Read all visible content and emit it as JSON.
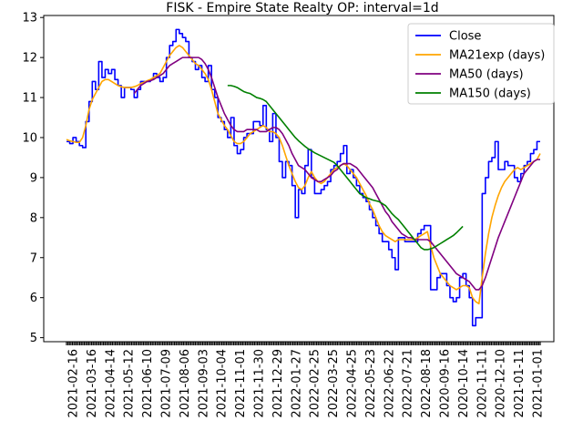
{
  "chart_data": {
    "type": "line",
    "title": "FISK - Empire State Realty OP: interval=1d",
    "xlabel": "",
    "ylabel": "",
    "ylim": [
      4.9,
      13.05
    ],
    "yticks": [
      5,
      6,
      7,
      8,
      9,
      10,
      11,
      12,
      13
    ],
    "grid": false,
    "legend_position": "top-right",
    "xtick_labels": [
      "2021-02-16",
      "2021-03-16",
      "2021-04-14",
      "2021-05-12",
      "2021-06-10",
      "2021-07-09",
      "2021-08-06",
      "2021-09-03",
      "2021-10-04",
      "2021-11-01",
      "2021-11-30",
      "2021-12-29",
      "2022-01-27",
      "2022-02-25",
      "2022-03-25",
      "2022-04-25",
      "2022-05-23",
      "2022-06-22",
      "2022-07-21",
      "2022-08-18",
      "2020-09-16",
      "2020-10-14",
      "2020-11-11",
      "2020-12-10",
      "2021-01-11",
      "2021-01-01"
    ],
    "series": [
      {
        "name": "Close",
        "color": "#0000ff",
        "values": [
          9.9,
          9.85,
          10.0,
          9.9,
          9.8,
          9.75,
          10.4,
          10.9,
          11.4,
          11.2,
          11.9,
          11.5,
          11.7,
          11.6,
          11.7,
          11.45,
          11.3,
          11.0,
          11.25,
          11.25,
          11.2,
          11.0,
          11.2,
          11.4,
          11.4,
          11.4,
          11.45,
          11.6,
          11.5,
          11.4,
          11.5,
          12.0,
          12.3,
          12.4,
          12.7,
          12.6,
          12.5,
          12.4,
          12.0,
          11.9,
          11.7,
          11.8,
          11.5,
          11.4,
          11.8,
          11.2,
          11.0,
          10.5,
          10.4,
          10.2,
          10.0,
          10.5,
          9.8,
          9.6,
          9.7,
          10.0,
          10.1,
          10.1,
          10.4,
          10.4,
          10.3,
          10.8,
          10.2,
          9.9,
          10.6,
          10.0,
          9.4,
          9.0,
          9.4,
          9.3,
          8.8,
          8.0,
          8.7,
          8.6,
          9.3,
          9.7,
          9.0,
          8.6,
          8.6,
          8.7,
          8.8,
          8.9,
          9.2,
          9.3,
          9.4,
          9.6,
          9.8,
          9.1,
          9.2,
          9.0,
          8.8,
          8.6,
          8.5,
          8.4,
          8.2,
          8.0,
          7.8,
          7.6,
          7.4,
          7.4,
          7.2,
          7.0,
          6.7,
          7.5,
          7.5,
          7.4,
          7.4,
          7.4,
          7.4,
          7.6,
          7.7,
          7.8,
          7.8,
          6.2,
          6.2,
          6.5,
          6.6,
          6.6,
          6.3,
          6.0,
          5.9,
          6.0,
          6.5,
          6.6,
          6.3,
          6.0,
          5.3,
          5.5,
          5.5,
          8.6,
          9.0,
          9.4,
          9.5,
          9.9,
          9.2,
          9.2,
          9.4,
          9.3,
          9.3,
          9.0,
          8.9,
          9.1,
          9.3,
          9.4,
          9.6,
          9.7,
          9.9,
          9.9
        ],
        "data_labels": []
      },
      {
        "name": "MA21exp (days)",
        "color": "#ffa500",
        "values": [
          9.95,
          9.92,
          9.9,
          9.88,
          9.88,
          10.0,
          10.3,
          10.7,
          10.95,
          11.1,
          11.25,
          11.4,
          11.45,
          11.45,
          11.4,
          11.35,
          11.3,
          11.27,
          11.25,
          11.25,
          11.25,
          11.27,
          11.3,
          11.35,
          11.38,
          11.42,
          11.45,
          11.5,
          11.55,
          11.6,
          11.75,
          11.9,
          12.05,
          12.15,
          12.25,
          12.3,
          12.25,
          12.15,
          12.05,
          11.95,
          11.85,
          11.8,
          11.7,
          11.6,
          11.45,
          11.2,
          10.9,
          10.6,
          10.45,
          10.3,
          10.2,
          10.05,
          9.9,
          9.85,
          9.85,
          9.9,
          10.0,
          10.1,
          10.15,
          10.2,
          10.25,
          10.3,
          10.25,
          10.15,
          10.15,
          10.1,
          10.0,
          9.8,
          9.55,
          9.3,
          9.1,
          8.9,
          8.75,
          8.7,
          8.8,
          9.0,
          9.15,
          9.0,
          8.9,
          8.85,
          8.9,
          9.0,
          9.1,
          9.2,
          9.25,
          9.3,
          9.35,
          9.3,
          9.2,
          9.1,
          9.0,
          8.85,
          8.7,
          8.55,
          8.35,
          8.2,
          8.0,
          7.8,
          7.65,
          7.55,
          7.5,
          7.45,
          7.4,
          7.45,
          7.45,
          7.45,
          7.45,
          7.45,
          7.45,
          7.5,
          7.55,
          7.6,
          7.65,
          7.3,
          7.0,
          6.8,
          6.6,
          6.5,
          6.4,
          6.3,
          6.25,
          6.2,
          6.25,
          6.3,
          6.3,
          6.25,
          6.0,
          5.9,
          5.85,
          6.5,
          7.1,
          7.6,
          8.0,
          8.3,
          8.55,
          8.75,
          8.9,
          9.0,
          9.1,
          9.2,
          9.25,
          9.2,
          9.25,
          9.3,
          9.35,
          9.4,
          9.45,
          9.6
        ],
        "data_labels": []
      },
      {
        "name": "MA50 (days)",
        "color": "#800080",
        "values": [
          null,
          null,
          null,
          null,
          null,
          null,
          null,
          null,
          null,
          null,
          null,
          null,
          null,
          null,
          null,
          null,
          null,
          null,
          null,
          null,
          null,
          11.1,
          11.2,
          11.3,
          11.35,
          11.4,
          11.42,
          11.45,
          11.5,
          11.55,
          11.6,
          11.7,
          11.8,
          11.85,
          11.9,
          11.95,
          12.0,
          12.0,
          12.0,
          12.0,
          12.0,
          12.0,
          11.95,
          11.85,
          11.7,
          11.5,
          11.25,
          11.0,
          10.8,
          10.6,
          10.45,
          10.3,
          10.2,
          10.15,
          10.15,
          10.15,
          10.2,
          10.2,
          10.2,
          10.2,
          10.15,
          10.15,
          10.15,
          10.2,
          10.25,
          10.25,
          10.2,
          10.1,
          9.95,
          9.8,
          9.6,
          9.45,
          9.3,
          9.25,
          9.2,
          9.1,
          9.0,
          8.95,
          8.9,
          8.9,
          8.95,
          9.0,
          9.05,
          9.15,
          9.2,
          9.3,
          9.35,
          9.35,
          9.35,
          9.3,
          9.25,
          9.15,
          9.05,
          8.95,
          8.85,
          8.75,
          8.6,
          8.45,
          8.3,
          8.15,
          8.05,
          7.9,
          7.8,
          7.7,
          7.6,
          7.55,
          7.5,
          7.5,
          7.45,
          7.45,
          7.45,
          7.45,
          7.45,
          7.4,
          7.3,
          7.2,
          7.1,
          7.0,
          6.9,
          6.8,
          6.7,
          6.6,
          6.55,
          6.5,
          6.45,
          6.4,
          6.3,
          6.2,
          6.2,
          6.3,
          6.5,
          6.75,
          7.0,
          7.25,
          7.5,
          7.7,
          7.9,
          8.1,
          8.3,
          8.5,
          8.7,
          8.9,
          9.1,
          9.2,
          9.3,
          9.4,
          9.45,
          9.45
        ],
        "data_labels": []
      },
      {
        "name": "MA150 (days)",
        "color": "#008000",
        "values": [
          null,
          null,
          null,
          null,
          null,
          null,
          null,
          null,
          null,
          null,
          null,
          null,
          null,
          null,
          null,
          null,
          null,
          null,
          null,
          null,
          null,
          null,
          null,
          null,
          null,
          null,
          null,
          null,
          null,
          null,
          null,
          null,
          null,
          null,
          null,
          null,
          null,
          null,
          null,
          null,
          null,
          null,
          null,
          null,
          null,
          null,
          null,
          null,
          null,
          null,
          11.3,
          11.3,
          11.28,
          11.25,
          11.2,
          11.15,
          11.12,
          11.1,
          11.05,
          11.0,
          10.98,
          10.95,
          10.9,
          10.8,
          10.7,
          10.6,
          10.5,
          10.4,
          10.3,
          10.2,
          10.1,
          10.0,
          9.92,
          9.85,
          9.78,
          9.72,
          9.67,
          9.62,
          9.58,
          9.54,
          9.5,
          9.46,
          9.42,
          9.38,
          9.3,
          9.2,
          9.1,
          9.0,
          8.9,
          8.8,
          8.7,
          8.6,
          8.55,
          8.5,
          8.47,
          8.44,
          8.42,
          8.4,
          8.35,
          8.3,
          8.2,
          8.1,
          8.02,
          7.95,
          7.85,
          7.75,
          7.65,
          7.55,
          7.45,
          7.35,
          7.25,
          7.2,
          7.2,
          7.22,
          7.25,
          7.3,
          7.35,
          7.4,
          7.45,
          7.5,
          7.55,
          7.62,
          7.7,
          7.78
        ],
        "data_labels": []
      }
    ]
  }
}
